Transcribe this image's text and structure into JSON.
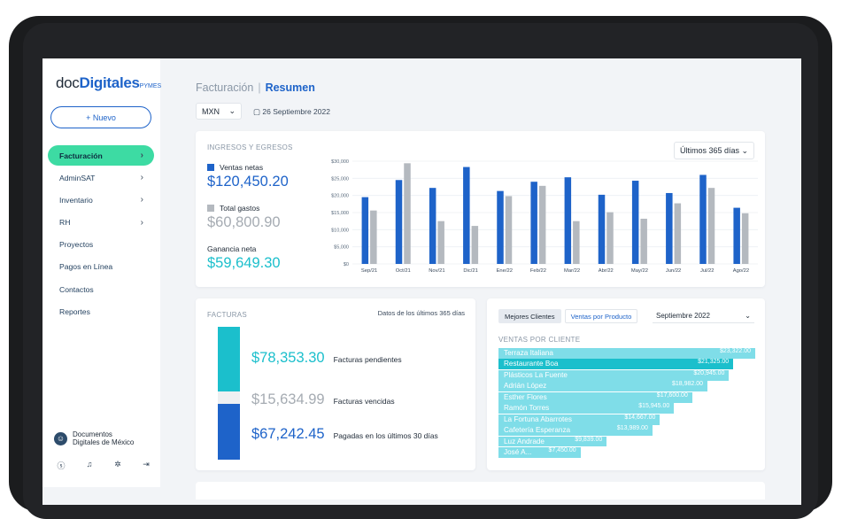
{
  "colors": {
    "accent": "#1e63c9",
    "green": "#3ddba3",
    "teal": "#1bbfcc",
    "lightTeal": "#7fdde8",
    "gray": "#b4b9bf",
    "panel": "#eef0f2"
  },
  "sidebar": {
    "logo": {
      "part1": "doc",
      "part2": "Digitales",
      "part3": "PYMES"
    },
    "new_button": "+ Nuevo",
    "items": [
      {
        "label": "Facturación",
        "chevron": true,
        "active": true
      },
      {
        "label": "AdminSAT",
        "chevron": true
      },
      {
        "label": "Inventario",
        "chevron": true
      },
      {
        "label": "RH",
        "chevron": true
      },
      {
        "label": "Proyectos"
      },
      {
        "label": "Pagos en Línea"
      },
      {
        "label": "Contactos"
      },
      {
        "label": "Reportes"
      }
    ],
    "company": {
      "line1": "Documentos",
      "line2": "Digitales de México"
    },
    "bottom_icons": [
      "user-icon",
      "bell-icon",
      "gear-icon",
      "logout-icon"
    ]
  },
  "header": {
    "crumb1": "Facturación",
    "crumb_sep": "|",
    "crumb2": "Resumen",
    "currency": "MXN",
    "date": "26 Septiembre 2022"
  },
  "income": {
    "title": "INGRESOS Y EGRESOS",
    "range": "Últimos 365 días",
    "net_sales_label": "Ventas netas",
    "net_sales_value": "$120,450.20",
    "expenses_label": "Total gastos",
    "expenses_value": "$60,800.90",
    "profit_label": "Ganancia neta",
    "profit_value": "$59,649.30"
  },
  "chart_data": {
    "type": "bar",
    "categories": [
      "Sep/21",
      "Oct/21",
      "Nov/21",
      "Dic/21",
      "Ene/22",
      "Feb/22",
      "Mar/22",
      "Abr/22",
      "May/22",
      "Jun/22",
      "Jul/22",
      "Ago/22"
    ],
    "series": [
      {
        "name": "Ventas netas",
        "color": "#1e63c9",
        "values": [
          19500,
          24500,
          22200,
          28300,
          21300,
          24000,
          25300,
          20200,
          24300,
          20700,
          26000,
          16400
        ]
      },
      {
        "name": "Total gastos",
        "color": "#b4b9bf",
        "values": [
          15600,
          29400,
          12500,
          11100,
          19800,
          22800,
          12500,
          15100,
          13200,
          17700,
          22200,
          14800
        ]
      }
    ],
    "ylim": [
      0,
      30000
    ],
    "yticks": [
      "$0",
      "$5,000",
      "$10,000",
      "$15,000",
      "$20,000",
      "$25,000",
      "$30,000"
    ],
    "ytick_values": [
      0,
      5000,
      10000,
      15000,
      20000,
      25000,
      30000
    ],
    "grid": true
  },
  "invoices": {
    "title": "FACTURAS",
    "note": "Datos de los últimos 365 días",
    "rows": [
      {
        "amount": "$78,353.30",
        "label": "Facturas pendientes",
        "color": "#1bbfcc",
        "value": 78353.3
      },
      {
        "amount": "$15,634.99",
        "label": "Facturas vencidas",
        "color": "#eef0f2",
        "value": 15634.99
      },
      {
        "amount": "$67,242.45",
        "label": "Pagadas en los últimos 30 días",
        "color": "#1e63c9",
        "value": 67242.45
      }
    ]
  },
  "clients": {
    "tab1": "Mejores Clientes",
    "tab2": "Ventas por Producto",
    "month": "Septiembre 2022",
    "subtitle": "VENTAS POR CLIENTE",
    "max": 23322,
    "items": [
      {
        "name": "Terraza Italiana",
        "value": "$23,322.00",
        "amount": 23322
      },
      {
        "name": "Restaurante Boa",
        "value": "$21,325.00",
        "amount": 21325,
        "highlight": true
      },
      {
        "name": "Plásticos La Fuente",
        "value": "$20,945.00",
        "amount": 20945
      },
      {
        "name": "Adrián López",
        "value": "$18,982.00",
        "amount": 18982
      },
      {
        "name": "Esther Flores",
        "value": "$17,600.00",
        "amount": 17600
      },
      {
        "name": "Ramón Torres",
        "value": "$15,945.00",
        "amount": 15945
      },
      {
        "name": "La Fortuna Abarrotes",
        "value": "$14,667.00",
        "amount": 14667
      },
      {
        "name": "Cafetería Esperanza",
        "value": "$13,989.00",
        "amount": 13989
      },
      {
        "name": "Luz Andrade",
        "value": "$9,839.00",
        "amount": 9839
      },
      {
        "name": "José A...",
        "value": "$7,450.00",
        "amount": 7450
      }
    ]
  }
}
